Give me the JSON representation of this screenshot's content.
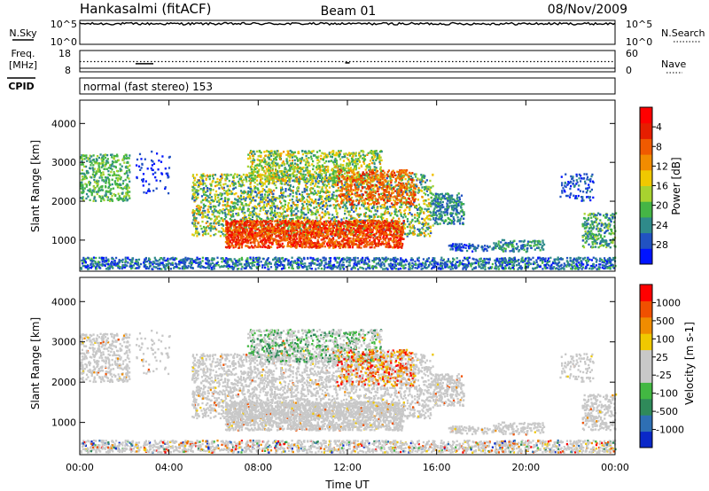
{
  "header": {
    "station": "Hankasalmi (fitACF)",
    "beam": "Beam 01",
    "date": "08/Nov/2009"
  },
  "colors": {
    "axis": "#000000",
    "scatter_fill": "#c8c8c8"
  },
  "chart_data": [
    {
      "type": "line",
      "panel": "noise",
      "left_label_top": "N.Sky",
      "left_ticks": [
        "10^5",
        "10^0"
      ],
      "right_ticks": [
        "10^5",
        "10^0"
      ],
      "right_label": "N.Search",
      "ylim": [
        0,
        5
      ],
      "approx_level": 4.3
    },
    {
      "type": "line",
      "panel": "frequency",
      "left_label": "Freq.",
      "left_unit": "[MHz]",
      "left_ticks": [
        "18",
        "8"
      ],
      "right_ticks": [
        "60",
        "0"
      ],
      "right_label": "Nave",
      "freq_level_mhz": 12.8,
      "freq_dips": [
        {
          "x_hours": [
            2.5,
            3.3
          ],
          "value": 11.8
        },
        {
          "x_hours": [
            11.9,
            12.1
          ],
          "value": 12.2
        }
      ]
    },
    {
      "type": "table",
      "panel": "cpid",
      "label": "CPID",
      "text": "normal (fast stereo) 153"
    },
    {
      "type": "heatmap",
      "panel": "power",
      "ylabel": "Slant Range [km]",
      "yticks": [
        1000,
        2000,
        3000,
        4000
      ],
      "ylim": [
        200,
        4600
      ],
      "xlim": [
        0,
        24
      ],
      "colorbar_label": "Power [dB]",
      "colorbar_ticks": [
        "4",
        "8",
        "12",
        "16",
        "20",
        "24",
        "28"
      ],
      "colorbar_colors": [
        "#0014ff",
        "#2152c2",
        "#2f8a8a",
        "#45b545",
        "#a8d22f",
        "#f0c800",
        "#f28c00",
        "#f05a00",
        "#e61e00",
        "#ff0000"
      ]
    },
    {
      "type": "heatmap",
      "panel": "velocity",
      "ylabel": "Slant Range [km]",
      "yticks": [
        1000,
        2000,
        3000,
        4000
      ],
      "ylim": [
        200,
        4600
      ],
      "xlim": [
        0,
        24
      ],
      "xticks": [
        "00:00",
        "04:00",
        "08:00",
        "12:00",
        "16:00",
        "20:00",
        "00:00"
      ],
      "xlabel": "Time UT",
      "colorbar_label": "Velocity [m s-1]",
      "colorbar_ticks": [
        "1000",
        "500",
        "100",
        "25",
        "-25",
        "-100",
        "-500",
        "-1000"
      ],
      "colorbar_colors": [
        "#0a28c8",
        "#2e6fb4",
        "#2f8a5a",
        "#42b842",
        "#c8c8c8",
        "#c8c8c8",
        "#f0c800",
        "#f08c00",
        "#f05000",
        "#ff0000"
      ]
    }
  ]
}
